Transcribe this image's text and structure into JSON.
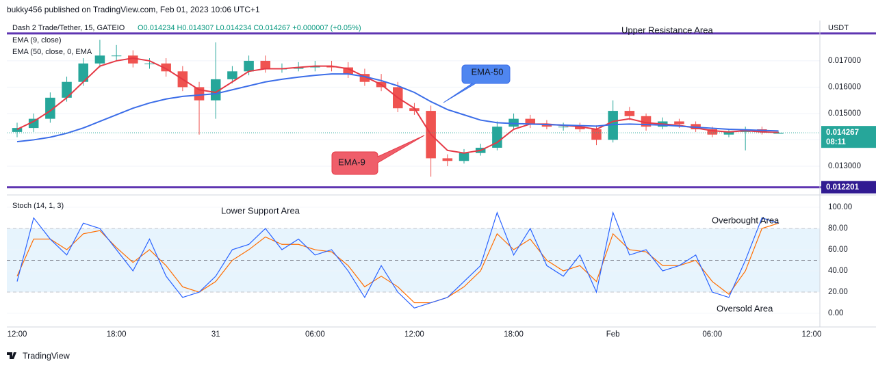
{
  "header": {
    "published": "bukky456 published on TradingView.com, Feb 01, 2023 10:06 UTC+1",
    "brand": "TradingView"
  },
  "chart_data": [
    {
      "type": "candlestick",
      "title": "Dash 2 Trade/Tether, 15, GATEIO",
      "ohlc_text": "O0.014234 H0.014307 L0.014234 C0.014267 +0.000007 (+0.05%)",
      "currency": "USDT",
      "x": [
        0,
        1,
        2,
        3,
        4,
        5,
        6,
        7,
        8,
        9,
        10,
        11,
        12,
        13,
        14,
        15,
        16,
        17,
        18,
        19,
        20,
        21,
        22,
        23,
        24,
        25,
        26,
        27,
        28,
        29,
        30,
        31,
        32,
        33,
        34,
        35,
        36,
        37,
        38,
        39,
        40,
        41,
        42,
        43,
        44,
        45,
        46
      ],
      "open": [
        0.0143,
        0.01445,
        0.0148,
        0.0156,
        0.0162,
        0.0169,
        0.0172,
        0.0172,
        0.0169,
        0.0169,
        0.0166,
        0.016,
        0.0155,
        0.0163,
        0.0166,
        0.017,
        0.0167,
        0.0167,
        0.01675,
        0.0168,
        0.01675,
        0.0165,
        0.0162,
        0.016,
        0.0152,
        0.0151,
        0.0133,
        0.0132,
        0.0135,
        0.0137,
        0.0145,
        0.0148,
        0.0146,
        0.0145,
        0.0145,
        0.0144,
        0.014,
        0.0151,
        0.0149,
        0.0145,
        0.0147,
        0.0146,
        0.0144,
        0.0142,
        0.0143,
        0.0144,
        0.014234
      ],
      "high": [
        0.01465,
        0.015,
        0.0158,
        0.0164,
        0.0171,
        0.0178,
        0.0176,
        0.0174,
        0.0171,
        0.0171,
        0.0168,
        0.0162,
        0.0177,
        0.0168,
        0.0172,
        0.0172,
        0.0169,
        0.01695,
        0.017,
        0.017,
        0.01695,
        0.0167,
        0.0165,
        0.0162,
        0.0154,
        0.0153,
        0.01345,
        0.01365,
        0.01385,
        0.0147,
        0.015,
        0.01495,
        0.01475,
        0.01465,
        0.01465,
        0.01455,
        0.0155,
        0.01525,
        0.015,
        0.01485,
        0.0148,
        0.0147,
        0.0145,
        0.0144,
        0.0145,
        0.0145,
        0.014307
      ],
      "low": [
        0.0141,
        0.0143,
        0.01465,
        0.01545,
        0.01605,
        0.01675,
        0.017,
        0.01675,
        0.0167,
        0.0164,
        0.01585,
        0.0142,
        0.0148,
        0.01615,
        0.01645,
        0.01655,
        0.01655,
        0.0166,
        0.0166,
        0.0166,
        0.01635,
        0.01605,
        0.01585,
        0.01505,
        0.01495,
        0.0126,
        0.013,
        0.0131,
        0.0134,
        0.0136,
        0.0144,
        0.01445,
        0.0144,
        0.01435,
        0.0143,
        0.0138,
        0.0139,
        0.01475,
        0.01435,
        0.0144,
        0.01445,
        0.0143,
        0.0141,
        0.0141,
        0.0136,
        0.0142,
        0.014234
      ],
      "close": [
        0.01445,
        0.0148,
        0.0156,
        0.0162,
        0.0169,
        0.0172,
        0.0172,
        0.0169,
        0.0169,
        0.0166,
        0.016,
        0.0155,
        0.0163,
        0.0166,
        0.017,
        0.0167,
        0.0167,
        0.01675,
        0.0168,
        0.01675,
        0.0165,
        0.0162,
        0.016,
        0.0152,
        0.0151,
        0.0133,
        0.0132,
        0.0135,
        0.0137,
        0.0145,
        0.0148,
        0.0146,
        0.0145,
        0.0145,
        0.0144,
        0.014,
        0.0151,
        0.0149,
        0.0145,
        0.0147,
        0.0146,
        0.0144,
        0.0142,
        0.0143,
        0.0144,
        0.0143,
        0.014267
      ],
      "up_color": "#26a69a",
      "down_color": "#ef5350",
      "series": [
        {
          "name": "EMA (9, close)",
          "color": "#e53945",
          "values": [
            0.0144,
            0.0147,
            0.0151,
            0.0156,
            0.0162,
            0.0168,
            0.017,
            0.0171,
            0.017,
            0.0167,
            0.0163,
            0.0159,
            0.0158,
            0.0162,
            0.0166,
            0.0167,
            0.0167,
            0.01675,
            0.0168,
            0.0168,
            0.0167,
            0.0164,
            0.0161,
            0.0156,
            0.0152,
            0.0142,
            0.0136,
            0.0135,
            0.0136,
            0.0139,
            0.0144,
            0.0146,
            0.0146,
            0.01455,
            0.0145,
            0.0144,
            0.0147,
            0.0148,
            0.01465,
            0.0146,
            0.01455,
            0.01445,
            0.01435,
            0.0143,
            0.01435,
            0.0143,
            0.01428
          ]
        },
        {
          "name": "EMA (50, close, 0, EMA",
          "color": "#3b6de8",
          "values": [
            0.01393,
            0.014,
            0.0141,
            0.01425,
            0.01445,
            0.0147,
            0.01495,
            0.0152,
            0.0154,
            0.01555,
            0.01565,
            0.0157,
            0.01575,
            0.0159,
            0.01605,
            0.0162,
            0.0163,
            0.01638,
            0.01645,
            0.0165,
            0.0165,
            0.0164,
            0.01625,
            0.01605,
            0.0158,
            0.01545,
            0.01515,
            0.01495,
            0.01475,
            0.01465,
            0.01462,
            0.0146,
            0.01458,
            0.01456,
            0.01454,
            0.01452,
            0.01458,
            0.0146,
            0.01458,
            0.01456,
            0.01452,
            0.01448,
            0.01444,
            0.0144,
            0.01438,
            0.01436,
            0.01434
          ]
        }
      ],
      "xlim": [
        -0.62,
        48.5
      ],
      "ylim": [
        0.01196,
        0.01853
      ],
      "xticks": [
        {
          "value": 0,
          "label": "12:00"
        },
        {
          "value": 6,
          "label": "18:00"
        },
        {
          "value": 12,
          "label": "31"
        },
        {
          "value": 18,
          "label": "06:00"
        },
        {
          "value": 24,
          "label": "12:00"
        },
        {
          "value": 30,
          "label": "18:00"
        },
        {
          "value": 36,
          "label": "Feb"
        },
        {
          "value": 42,
          "label": "06:00"
        },
        {
          "value": 48,
          "label": "12:00"
        }
      ],
      "yticks": [
        {
          "value": 0.013,
          "label": "0.013000"
        },
        {
          "value": 0.014,
          "label": "0.014000"
        },
        {
          "value": 0.015,
          "label": "0.015000"
        },
        {
          "value": 0.016,
          "label": "0.016000"
        },
        {
          "value": 0.017,
          "label": "0.017000"
        }
      ],
      "levels": [
        {
          "value": 0.018039,
          "color": "#5e35b1"
        },
        {
          "value": 0.012201,
          "color": "#5e35b1",
          "label": "0.012201"
        }
      ],
      "last_price": {
        "value": 0.014267,
        "label": "0.014267",
        "countdown": "08:11",
        "color": "#26a69a"
      },
      "annotations": {
        "upper": "Upper Resistance Area",
        "ema50": "EMA-50",
        "ema9": "EMA-9"
      },
      "grid": true
    },
    {
      "type": "line",
      "title": "Stoch (14, 1, 3)",
      "series": [
        {
          "name": "%K",
          "color": "#2962ff",
          "values": [
            30,
            90,
            70,
            55,
            85,
            80,
            60,
            40,
            70,
            35,
            15,
            20,
            35,
            60,
            65,
            80,
            60,
            70,
            55,
            60,
            40,
            15,
            45,
            20,
            5,
            10,
            15,
            30,
            45,
            95,
            55,
            80,
            45,
            35,
            55,
            20,
            95,
            55,
            60,
            40,
            45,
            55,
            20,
            15,
            50,
            90,
            85
          ]
        },
        {
          "name": "%D",
          "color": "#ff6d00",
          "values": [
            35,
            70,
            70,
            60,
            75,
            78,
            62,
            48,
            60,
            45,
            25,
            20,
            30,
            50,
            60,
            72,
            65,
            65,
            60,
            58,
            45,
            25,
            35,
            25,
            10,
            10,
            15,
            25,
            40,
            75,
            60,
            70,
            50,
            40,
            45,
            30,
            75,
            60,
            58,
            45,
            45,
            50,
            30,
            18,
            40,
            80,
            85
          ]
        }
      ],
      "ylim": [
        -7.7,
        108.4
      ],
      "yticks": [
        {
          "value": 0,
          "label": "0.00"
        },
        {
          "value": 20,
          "label": "20.00"
        },
        {
          "value": 40,
          "label": "40.00"
        },
        {
          "value": 60,
          "label": "60.00"
        },
        {
          "value": 80,
          "label": "80.00"
        },
        {
          "value": 100,
          "label": "100.00"
        }
      ],
      "band": [
        20,
        80
      ],
      "levels": [
        20,
        50,
        80
      ],
      "annotations": {
        "lower": "Lower Support Area",
        "overbought": "Overbought Area",
        "oversold": "Oversold Area"
      },
      "grid": true
    }
  ]
}
